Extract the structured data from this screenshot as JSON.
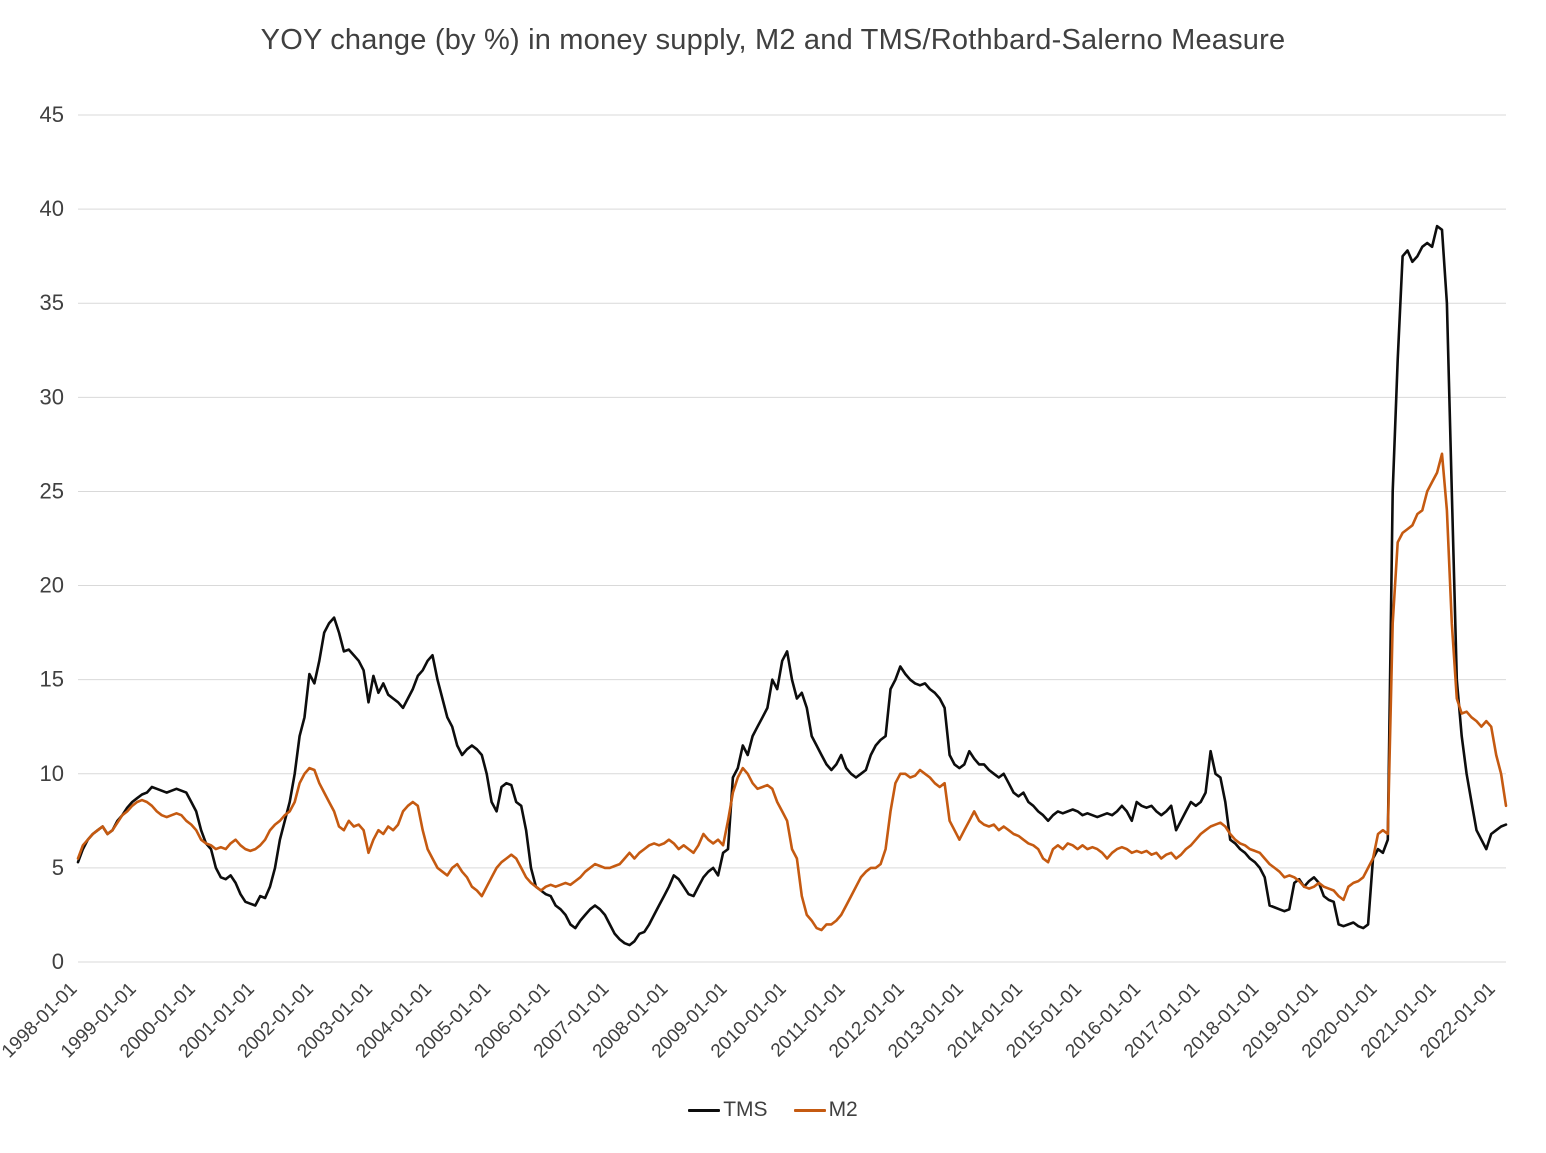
{
  "title": "YOY change (by %) in money supply, M2 and TMS/Rothbard-Salerno Measure",
  "chart_data": {
    "type": "line",
    "title": "YOY change (by %) in money supply, M2 and TMS/Rothbard-Salerno Measure",
    "x_start": "1998-01",
    "x_freq": "monthly",
    "x_tick_every": 12,
    "x_tick_labels": [
      "1998-01-01",
      "1999-01-01",
      "2000-01-01",
      "2001-01-01",
      "2002-01-01",
      "2003-01-01",
      "2004-01-01",
      "2005-01-01",
      "2006-01-01",
      "2007-01-01",
      "2008-01-01",
      "2009-01-01",
      "2010-01-01",
      "2011-01-01",
      "2012-01-01",
      "2013-01-01",
      "2014-01-01",
      "2015-01-01",
      "2016-01-01",
      "2017-01-01",
      "2018-01-01",
      "2019-01-01",
      "2020-01-01",
      "2021-01-01",
      "2022-01-01"
    ],
    "ylim": [
      0,
      45
    ],
    "y_tick_step": 5,
    "grid": "horizontal",
    "gridline_color": "#d9d9d9",
    "axis_text_color": "#404040",
    "legend_position": "bottom",
    "series": [
      {
        "name": "TMS",
        "color": "#0d0d0d",
        "values": [
          5.3,
          6.0,
          6.5,
          6.8,
          7.0,
          7.2,
          6.8,
          7.0,
          7.5,
          7.8,
          8.2,
          8.5,
          8.7,
          8.9,
          9.0,
          9.3,
          9.2,
          9.1,
          9.0,
          9.1,
          9.2,
          9.1,
          9.0,
          8.5,
          8.0,
          7.0,
          6.3,
          6.0,
          5.0,
          4.5,
          4.4,
          4.6,
          4.2,
          3.6,
          3.2,
          3.1,
          3.0,
          3.5,
          3.4,
          4.0,
          5.0,
          6.5,
          7.5,
          8.5,
          10.0,
          12.0,
          13.0,
          15.3,
          14.8,
          16.0,
          17.5,
          18.0,
          18.3,
          17.5,
          16.5,
          16.6,
          16.3,
          16.0,
          15.5,
          13.8,
          15.2,
          14.3,
          14.8,
          14.2,
          14.0,
          13.8,
          13.5,
          14.0,
          14.5,
          15.2,
          15.5,
          16.0,
          16.3,
          15.0,
          14.0,
          13.0,
          12.5,
          11.5,
          11.0,
          11.3,
          11.5,
          11.3,
          11.0,
          10.0,
          8.5,
          8.0,
          9.3,
          9.5,
          9.4,
          8.5,
          8.3,
          7.0,
          5.0,
          4.0,
          3.8,
          3.6,
          3.5,
          3.0,
          2.8,
          2.5,
          2.0,
          1.8,
          2.2,
          2.5,
          2.8,
          3.0,
          2.8,
          2.5,
          2.0,
          1.5,
          1.2,
          1.0,
          0.9,
          1.1,
          1.5,
          1.6,
          2.0,
          2.5,
          3.0,
          3.5,
          4.0,
          4.6,
          4.4,
          4.0,
          3.6,
          3.5,
          4.0,
          4.5,
          4.8,
          5.0,
          4.6,
          5.8,
          6.0,
          9.8,
          10.3,
          11.5,
          11.0,
          12.0,
          12.5,
          13.0,
          13.5,
          15.0,
          14.5,
          16.0,
          16.5,
          15.0,
          14.0,
          14.3,
          13.5,
          12.0,
          11.5,
          11.0,
          10.5,
          10.2,
          10.5,
          11.0,
          10.3,
          10.0,
          9.8,
          10.0,
          10.2,
          11.0,
          11.5,
          11.8,
          12.0,
          14.5,
          15.0,
          15.7,
          15.3,
          15.0,
          14.8,
          14.7,
          14.8,
          14.5,
          14.3,
          14.0,
          13.5,
          11.0,
          10.5,
          10.3,
          10.5,
          11.2,
          10.8,
          10.5,
          10.5,
          10.2,
          10.0,
          9.8,
          10.0,
          9.5,
          9.0,
          8.8,
          9.0,
          8.5,
          8.3,
          8.0,
          7.8,
          7.5,
          7.8,
          8.0,
          7.9,
          8.0,
          8.1,
          8.0,
          7.8,
          7.9,
          7.8,
          7.7,
          7.8,
          7.9,
          7.8,
          8.0,
          8.3,
          8.0,
          7.5,
          8.5,
          8.3,
          8.2,
          8.3,
          8.0,
          7.8,
          8.0,
          8.3,
          7.0,
          7.5,
          8.0,
          8.5,
          8.3,
          8.5,
          9.0,
          11.2,
          10.0,
          9.8,
          8.5,
          6.5,
          6.3,
          6.0,
          5.8,
          5.5,
          5.3,
          5.0,
          4.5,
          3.0,
          2.9,
          2.8,
          2.7,
          2.8,
          4.2,
          4.4,
          4.0,
          4.3,
          4.5,
          4.2,
          3.5,
          3.3,
          3.2,
          2.0,
          1.9,
          2.0,
          2.1,
          1.9,
          1.8,
          2.0,
          5.5,
          6.0,
          5.8,
          6.5,
          25.0,
          32.0,
          37.5,
          37.8,
          37.2,
          37.5,
          38.0,
          38.2,
          38.0,
          39.1,
          38.9,
          35.0,
          25.0,
          15.0,
          12.0,
          10.0,
          8.5,
          7.0,
          6.5,
          6.0,
          6.8,
          7.0,
          7.2,
          7.3
        ]
      },
      {
        "name": "M2",
        "color": "#c55a11",
        "values": [
          5.5,
          6.2,
          6.5,
          6.8,
          7.0,
          7.2,
          6.8,
          7.0,
          7.4,
          7.8,
          8.0,
          8.3,
          8.5,
          8.6,
          8.5,
          8.3,
          8.0,
          7.8,
          7.7,
          7.8,
          7.9,
          7.8,
          7.5,
          7.3,
          7.0,
          6.5,
          6.3,
          6.2,
          6.0,
          6.1,
          6.0,
          6.3,
          6.5,
          6.2,
          6.0,
          5.9,
          6.0,
          6.2,
          6.5,
          7.0,
          7.3,
          7.5,
          7.8,
          8.0,
          8.5,
          9.5,
          10.0,
          10.3,
          10.2,
          9.5,
          9.0,
          8.5,
          8.0,
          7.2,
          7.0,
          7.5,
          7.2,
          7.3,
          7.0,
          5.8,
          6.5,
          7.0,
          6.8,
          7.2,
          7.0,
          7.3,
          8.0,
          8.3,
          8.5,
          8.3,
          7.0,
          6.0,
          5.5,
          5.0,
          4.8,
          4.6,
          5.0,
          5.2,
          4.8,
          4.5,
          4.0,
          3.8,
          3.5,
          4.0,
          4.5,
          5.0,
          5.3,
          5.5,
          5.7,
          5.5,
          5.0,
          4.5,
          4.2,
          4.0,
          3.8,
          4.0,
          4.1,
          4.0,
          4.1,
          4.2,
          4.1,
          4.3,
          4.5,
          4.8,
          5.0,
          5.2,
          5.1,
          5.0,
          5.0,
          5.1,
          5.2,
          5.5,
          5.8,
          5.5,
          5.8,
          6.0,
          6.2,
          6.3,
          6.2,
          6.3,
          6.5,
          6.3,
          6.0,
          6.2,
          6.0,
          5.8,
          6.2,
          6.8,
          6.5,
          6.3,
          6.5,
          6.2,
          7.5,
          9.0,
          9.8,
          10.3,
          10.0,
          9.5,
          9.2,
          9.3,
          9.4,
          9.2,
          8.5,
          8.0,
          7.5,
          6.0,
          5.5,
          3.5,
          2.5,
          2.2,
          1.8,
          1.7,
          2.0,
          2.0,
          2.2,
          2.5,
          3.0,
          3.5,
          4.0,
          4.5,
          4.8,
          5.0,
          5.0,
          5.2,
          6.0,
          8.0,
          9.5,
          10.0,
          10.0,
          9.8,
          9.9,
          10.2,
          10.0,
          9.8,
          9.5,
          9.3,
          9.5,
          7.5,
          7.0,
          6.5,
          7.0,
          7.5,
          8.0,
          7.5,
          7.3,
          7.2,
          7.3,
          7.0,
          7.2,
          7.0,
          6.8,
          6.7,
          6.5,
          6.3,
          6.2,
          6.0,
          5.5,
          5.3,
          6.0,
          6.2,
          6.0,
          6.3,
          6.2,
          6.0,
          6.2,
          6.0,
          6.1,
          6.0,
          5.8,
          5.5,
          5.8,
          6.0,
          6.1,
          6.0,
          5.8,
          5.9,
          5.8,
          5.9,
          5.7,
          5.8,
          5.5,
          5.7,
          5.8,
          5.5,
          5.7,
          6.0,
          6.2,
          6.5,
          6.8,
          7.0,
          7.2,
          7.3,
          7.4,
          7.2,
          6.8,
          6.5,
          6.3,
          6.2,
          6.0,
          5.9,
          5.8,
          5.5,
          5.2,
          5.0,
          4.8,
          4.5,
          4.6,
          4.5,
          4.3,
          4.0,
          3.9,
          4.0,
          4.2,
          4.0,
          3.9,
          3.8,
          3.5,
          3.3,
          4.0,
          4.2,
          4.3,
          4.5,
          5.0,
          5.5,
          6.8,
          7.0,
          6.8,
          18.0,
          22.3,
          22.8,
          23.0,
          23.2,
          23.8,
          24.0,
          25.0,
          25.5,
          26.0,
          27.0,
          24.0,
          18.0,
          14.0,
          13.2,
          13.3,
          13.0,
          12.8,
          12.5,
          12.8,
          12.5,
          11.0,
          10.0,
          8.3
        ]
      }
    ]
  }
}
